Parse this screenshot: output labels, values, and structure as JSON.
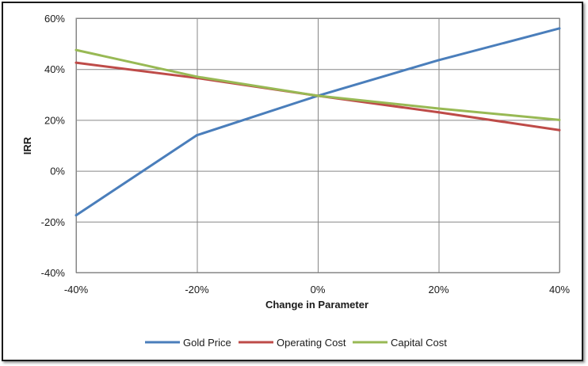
{
  "chart_data": {
    "type": "line",
    "title": "",
    "xlabel": "Change in Parameter",
    "ylabel": "IRR",
    "x": [
      -40,
      -20,
      0,
      20,
      40
    ],
    "x_tick_labels": [
      "-40%",
      "-20%",
      "0%",
      "20%",
      "40%"
    ],
    "xlim": [
      -40,
      40
    ],
    "ylim": [
      -40,
      60
    ],
    "y_ticks": [
      -40,
      -20,
      0,
      20,
      40,
      60
    ],
    "y_tick_labels": [
      "-40%",
      "-20%",
      "0%",
      "20%",
      "40%",
      "60%"
    ],
    "grid": true,
    "legend_position": "bottom",
    "series": [
      {
        "name": "Gold Price",
        "color": "#4a7ebb",
        "values": [
          -17.5,
          14,
          29.5,
          43.5,
          56
        ]
      },
      {
        "name": "Operating Cost",
        "color": "#be4b48",
        "values": [
          42.5,
          36.5,
          29.5,
          23,
          16
        ]
      },
      {
        "name": "Capital Cost",
        "color": "#98b954",
        "values": [
          47.5,
          37,
          29.5,
          24.5,
          20
        ]
      }
    ]
  }
}
